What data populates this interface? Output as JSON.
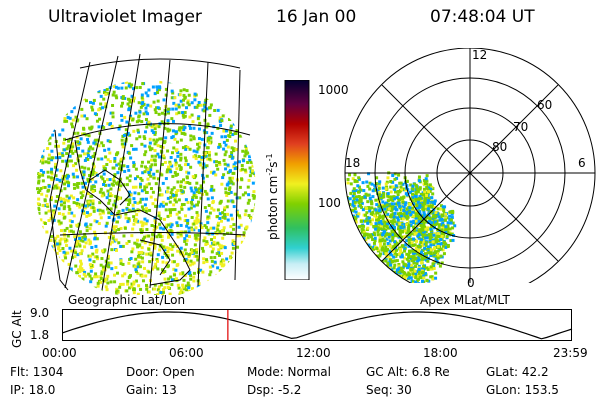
{
  "header": {
    "title": "Ultraviolet Imager",
    "date": "16 Jan 00",
    "time": "07:48:04 UT"
  },
  "geo_panel": {
    "label": "Geographic Lat/Lon"
  },
  "apex_panel": {
    "label": "Apex  MLat/MLT",
    "mlt_labels": [
      "12",
      "18",
      "6",
      "0"
    ],
    "mlat_labels": [
      "60",
      "70",
      "80"
    ]
  },
  "colorbar": {
    "ticks": [
      "1000",
      "100"
    ],
    "unit_base": "photon cm",
    "unit_exp1": "-2",
    "unit_mid": "s",
    "unit_exp2": "-1"
  },
  "orbit_plot": {
    "ylabel": "GC Alt",
    "yticks": [
      "9.0",
      "1.8"
    ],
    "xticks": [
      "00:00",
      "06:00",
      "12:00",
      "18:00",
      "23:59"
    ],
    "current_time_marker": "07:48"
  },
  "info": {
    "row1": [
      "Flt: 1304",
      "Door: Open",
      "Mode: Normal",
      "GC Alt: 6.8 Re",
      "GLat:  42.2"
    ],
    "row2": [
      "IP: 18.0",
      "Gain: 13",
      "Dsp:    -5.2",
      "Seq: 30",
      "GLon: 153.5"
    ]
  },
  "colors": {
    "marker": "#e00000",
    "low": "#00a0ff",
    "mid": "#7dd000",
    "high": "#f0f020"
  }
}
